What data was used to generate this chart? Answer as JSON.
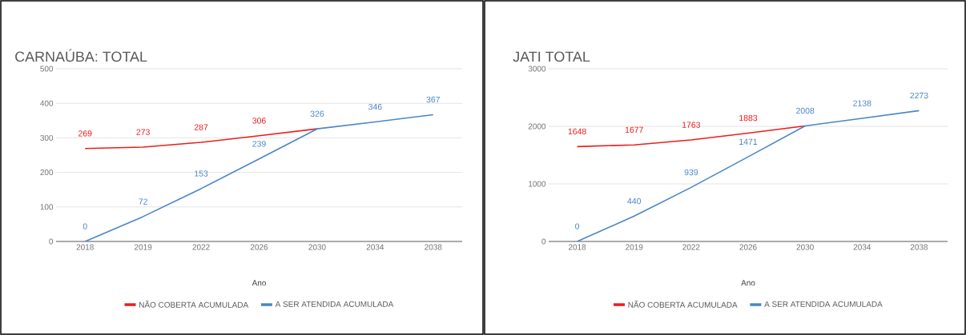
{
  "chart_data": [
    {
      "type": "line",
      "title": "CARNAÚBA: TOTAL",
      "xlabel": "Ano",
      "categories": [
        "2018",
        "2019",
        "2022",
        "2026",
        "2030",
        "2034",
        "2038"
      ],
      "series": [
        {
          "name": "NÃO COBERTA ACUMULADA",
          "color": "#ee1c1c",
          "values": [
            269,
            273,
            287,
            306,
            326,
            null,
            null
          ],
          "value_labels": [
            "269",
            "273",
            "287",
            "306",
            null,
            null,
            null
          ]
        },
        {
          "name": "A SER ATENDIDA ACUMULADA",
          "color": "#4a86c5",
          "values": [
            0,
            72,
            153,
            239,
            326,
            346,
            367
          ],
          "value_labels": [
            "0",
            "72",
            "153",
            "239",
            "326",
            "346",
            "367"
          ]
        }
      ],
      "ylim": [
        0,
        500
      ],
      "yticks": [
        0,
        100,
        200,
        300,
        400,
        500
      ],
      "grid": "y",
      "legend": "bottom"
    },
    {
      "type": "line",
      "title": "JATI TOTAL",
      "xlabel": "Ano",
      "categories": [
        "2018",
        "2019",
        "2022",
        "2026",
        "2030",
        "2034",
        "2038"
      ],
      "series": [
        {
          "name": "NÃO COBERTA ACUMULADA",
          "color": "#ee1c1c",
          "values": [
            1648,
            1677,
            1763,
            1883,
            2008,
            null,
            null
          ],
          "value_labels": [
            "1648",
            "1677",
            "1763",
            "1883",
            null,
            null,
            null
          ]
        },
        {
          "name": "A SER ATENDIDA ACUMULADA",
          "color": "#4a86c5",
          "values": [
            0,
            440,
            939,
            1471,
            2008,
            2138,
            2273
          ],
          "value_labels": [
            "0",
            "440",
            "939",
            "1471",
            "2008",
            "2138",
            "2273"
          ]
        }
      ],
      "ylim": [
        0,
        3000
      ],
      "yticks": [
        0,
        1000,
        2000,
        3000
      ],
      "grid": "y",
      "legend": "bottom"
    }
  ]
}
